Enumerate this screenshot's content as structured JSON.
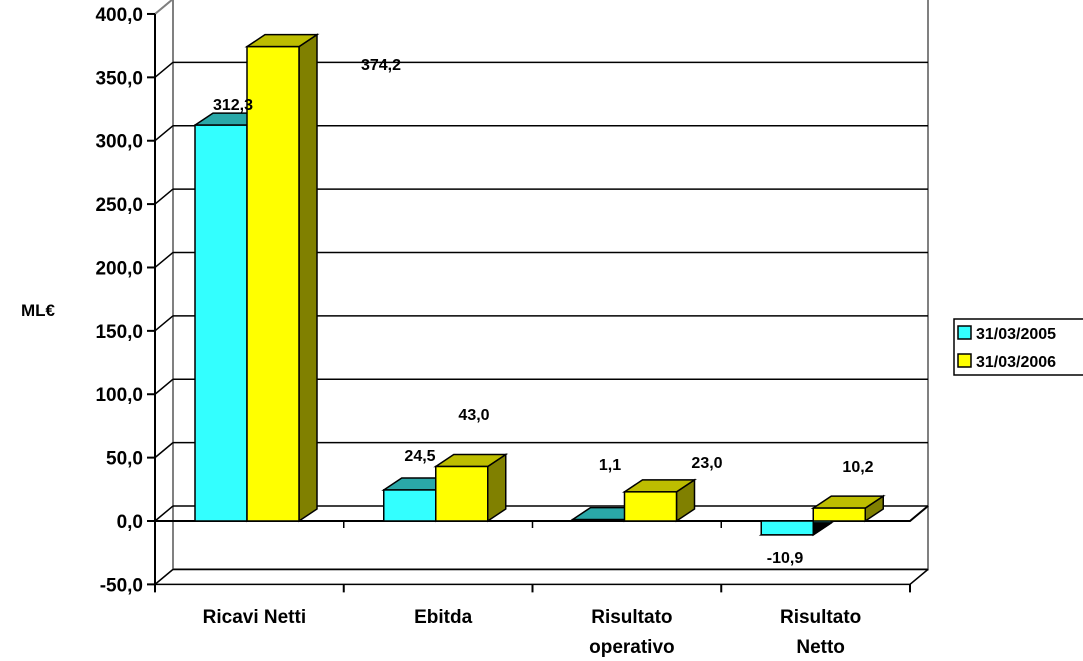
{
  "chart_data": {
    "type": "bar",
    "style": "3d-clustered-column",
    "categories": [
      [
        "Ricavi Netti"
      ],
      [
        "Ebitda"
      ],
      [
        "Risultato",
        "operativo"
      ],
      [
        "Risultato",
        "Netto"
      ]
    ],
    "series": [
      {
        "name": "31/03/2005",
        "values": [
          312.3,
          24.5,
          1.1,
          -10.9
        ],
        "color": "#33FFFF",
        "side": "#22BBBB",
        "top": "#2AA8A8"
      },
      {
        "name": "31/03/2006",
        "values": [
          374.2,
          43.0,
          23.0,
          10.2
        ],
        "color": "#FFFF00",
        "side": "#808000",
        "top": "#BDBD00"
      }
    ],
    "data_labels": [
      [
        "312,3",
        "24,5",
        "1,1",
        "-10,9"
      ],
      [
        "374,2",
        "43,0",
        "23,0",
        "10,2"
      ]
    ],
    "ylabel": "ML€",
    "ylim": [
      -50,
      400
    ],
    "yticks": [
      -50,
      0,
      50,
      100,
      150,
      200,
      250,
      300,
      350,
      400
    ],
    "ytick_labels": [
      "-50,0",
      "0,0",
      "50,0",
      "100,0",
      "150,0",
      "200,0",
      "250,0",
      "300,0",
      "350,0",
      "400,0"
    ],
    "grid": true,
    "legend": "right"
  }
}
